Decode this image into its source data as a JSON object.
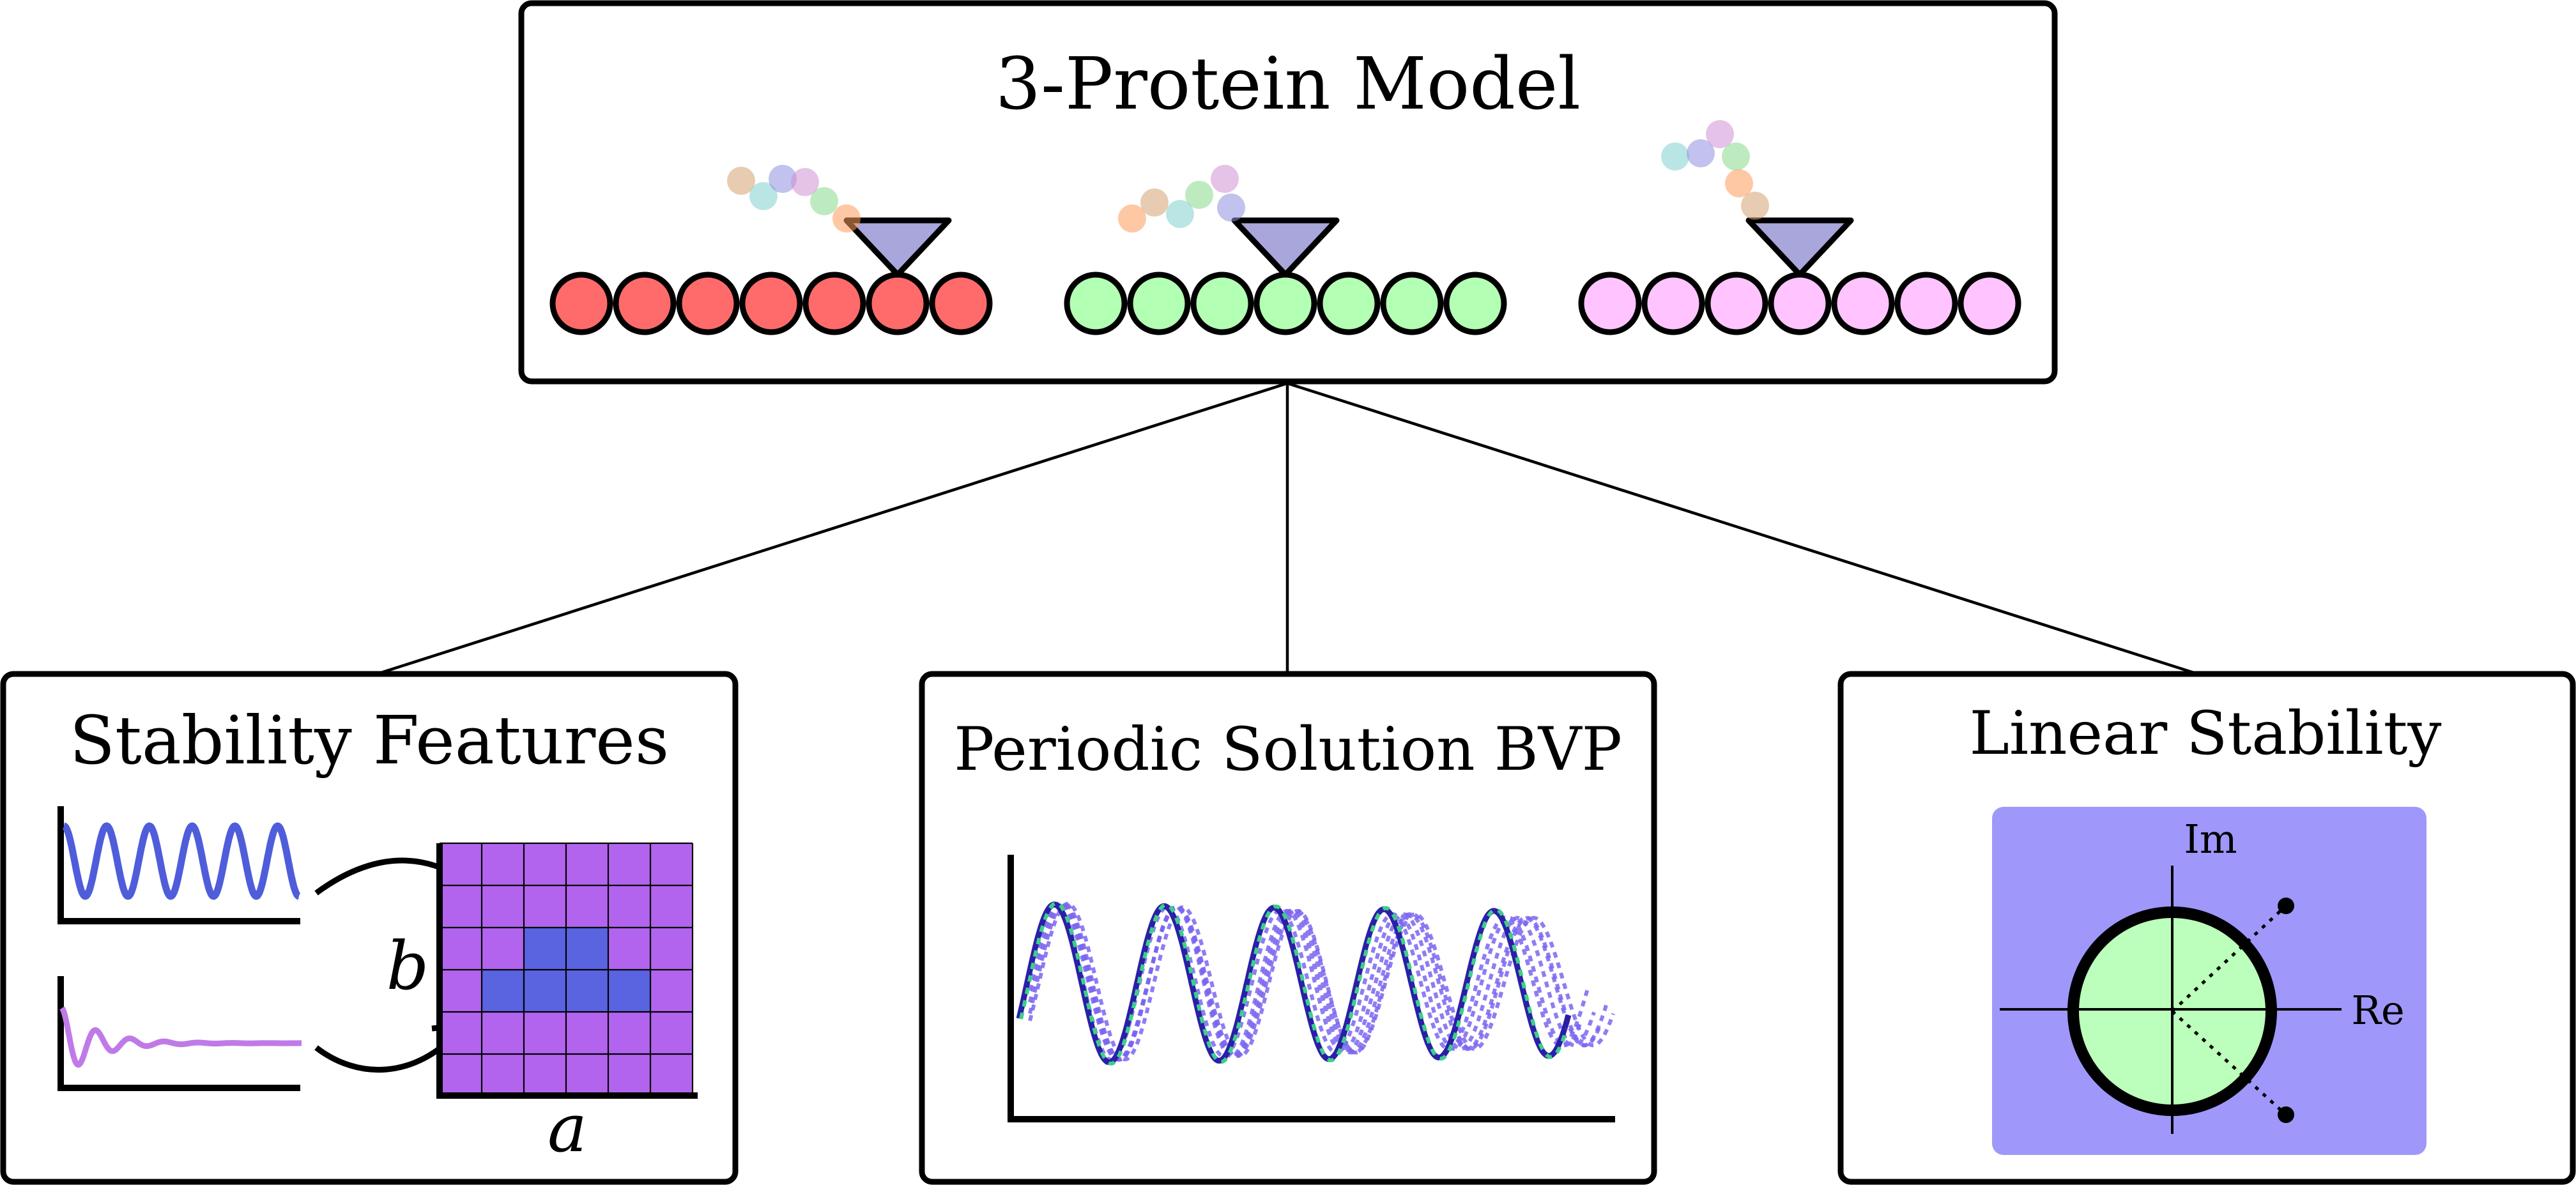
{
  "top": {
    "title": "3-Protein Model",
    "filaments": [
      {
        "bead_color": "#ff6b6b"
      },
      {
        "bead_color": "#b3ffb3"
      },
      {
        "bead_color": "#ffc4ff"
      }
    ],
    "cargo_colors": [
      "#d4a373",
      "#7fd1cf",
      "#8f8fe0",
      "#d08fd4",
      "#88d88a",
      "#ff9b5a"
    ],
    "motor_color": "#a9a6dc"
  },
  "left_panel": {
    "title": "Stability Features",
    "x_label": "a",
    "y_label": "b",
    "oscillation_color": "#4f5ddb",
    "damped_color": "#c07ae8",
    "grid_color": "#b264ee",
    "highlight_color": "#5a63e0"
  },
  "middle_panel": {
    "title": "Periodic Solution BVP",
    "solid_color": "#2b1fa8",
    "dashed_color": "#3ccf8a",
    "dotted_color": "#7a66f0"
  },
  "right_panel": {
    "title": "Linear Stability",
    "re_label": "Re",
    "im_label": "Im",
    "bg_color": "#9f98fa",
    "circle_color": "#bcffbc"
  }
}
